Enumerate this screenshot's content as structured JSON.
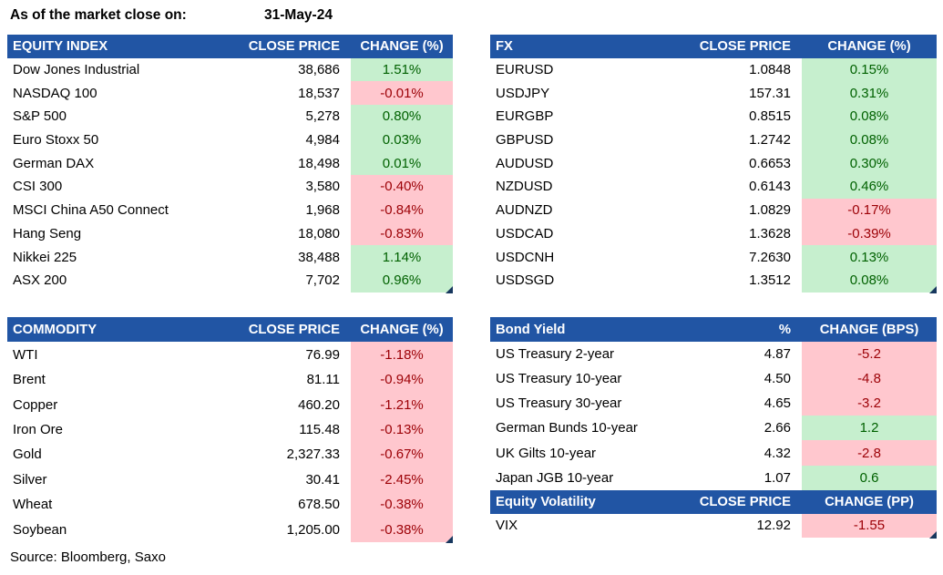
{
  "page": {
    "as_of_label": "As of the market close on:",
    "as_of_date": "31-May-24",
    "source": "Source: Bloomberg, Saxo"
  },
  "colors": {
    "header_bg": "#2155A4",
    "header_text": "#FFFFFF",
    "positive_bg": "#C6EFCE",
    "positive_text": "#006100",
    "negative_bg": "#FFC7CE",
    "negative_text": "#9C0006",
    "handle": "#17375E"
  },
  "tables": {
    "equity": {
      "headers": [
        "EQUITY INDEX",
        "CLOSE PRICE",
        "CHANGE (%)"
      ],
      "rows": [
        {
          "name": "Dow Jones Industrial",
          "close": "38,686",
          "change": "1.51%",
          "dir": "up"
        },
        {
          "name": "NASDAQ 100",
          "close": "18,537",
          "change": "-0.01%",
          "dir": "down"
        },
        {
          "name": "S&P 500",
          "close": "5,278",
          "change": "0.80%",
          "dir": "up"
        },
        {
          "name": "Euro Stoxx 50",
          "close": "4,984",
          "change": "0.03%",
          "dir": "up"
        },
        {
          "name": "German DAX",
          "close": "18,498",
          "change": "0.01%",
          "dir": "up"
        },
        {
          "name": "CSI 300",
          "close": "3,580",
          "change": "-0.40%",
          "dir": "down"
        },
        {
          "name": "MSCI China A50 Connect",
          "close": "1,968",
          "change": "-0.84%",
          "dir": "down"
        },
        {
          "name": "Hang Seng",
          "close": "18,080",
          "change": "-0.83%",
          "dir": "down"
        },
        {
          "name": "Nikkei 225",
          "close": "38,488",
          "change": "1.14%",
          "dir": "up"
        },
        {
          "name": "ASX 200",
          "close": "7,702",
          "change": "0.96%",
          "dir": "up"
        }
      ]
    },
    "fx": {
      "headers": [
        "FX",
        "CLOSE PRICE",
        "CHANGE (%)"
      ],
      "rows": [
        {
          "name": "EURUSD",
          "close": "1.0848",
          "change": "0.15%",
          "dir": "up"
        },
        {
          "name": "USDJPY",
          "close": "157.31",
          "change": "0.31%",
          "dir": "up"
        },
        {
          "name": "EURGBP",
          "close": "0.8515",
          "change": "0.08%",
          "dir": "up"
        },
        {
          "name": "GBPUSD",
          "close": "1.2742",
          "change": "0.08%",
          "dir": "up"
        },
        {
          "name": "AUDUSD",
          "close": "0.6653",
          "change": "0.30%",
          "dir": "up"
        },
        {
          "name": "NZDUSD",
          "close": "0.6143",
          "change": "0.46%",
          "dir": "up"
        },
        {
          "name": "AUDNZD",
          "close": "1.0829",
          "change": "-0.17%",
          "dir": "down"
        },
        {
          "name": "USDCAD",
          "close": "1.3628",
          "change": "-0.39%",
          "dir": "down"
        },
        {
          "name": "USDCNH",
          "close": "7.2630",
          "change": "0.13%",
          "dir": "up"
        },
        {
          "name": "USDSGD",
          "close": "1.3512",
          "change": "0.08%",
          "dir": "up"
        }
      ]
    },
    "commodity": {
      "headers": [
        "COMMODITY",
        "CLOSE PRICE",
        "CHANGE (%)"
      ],
      "rows": [
        {
          "name": "WTI",
          "close": "76.99",
          "change": "-1.18%",
          "dir": "down"
        },
        {
          "name": "Brent",
          "close": "81.11",
          "change": "-0.94%",
          "dir": "down"
        },
        {
          "name": "Copper",
          "close": "460.20",
          "change": "-1.21%",
          "dir": "down"
        },
        {
          "name": "Iron Ore",
          "close": "115.48",
          "change": "-0.13%",
          "dir": "down"
        },
        {
          "name": "Gold",
          "close": "2,327.33",
          "change": "-0.67%",
          "dir": "down"
        },
        {
          "name": "Silver",
          "close": "30.41",
          "change": "-2.45%",
          "dir": "down"
        },
        {
          "name": "Wheat",
          "close": "678.50",
          "change": "-0.38%",
          "dir": "down"
        },
        {
          "name": "Soybean",
          "close": "1,205.00",
          "change": "-0.38%",
          "dir": "down"
        }
      ]
    },
    "bond": {
      "headers": [
        "Bond Yield",
        "%",
        "CHANGE (BPS)"
      ],
      "rows": [
        {
          "name": "US Treasury 2-year",
          "close": "4.87",
          "change": "-5.2",
          "dir": "down"
        },
        {
          "name": "US Treasury 10-year",
          "close": "4.50",
          "change": "-4.8",
          "dir": "down"
        },
        {
          "name": "US Treasury 30-year",
          "close": "4.65",
          "change": "-3.2",
          "dir": "down"
        },
        {
          "name": "German Bunds 10-year",
          "close": "2.66",
          "change": "1.2",
          "dir": "up"
        },
        {
          "name": "UK Gilts 10-year",
          "close": "4.32",
          "change": "-2.8",
          "dir": "down"
        },
        {
          "name": "Japan JGB 10-year",
          "close": "1.07",
          "change": "0.6",
          "dir": "up"
        }
      ]
    },
    "volatility": {
      "headers": [
        "Equity Volatility",
        "CLOSE PRICE",
        "CHANGE (PP)"
      ],
      "rows": [
        {
          "name": "VIX",
          "close": "12.92",
          "change": "-1.55",
          "dir": "down"
        }
      ]
    }
  }
}
